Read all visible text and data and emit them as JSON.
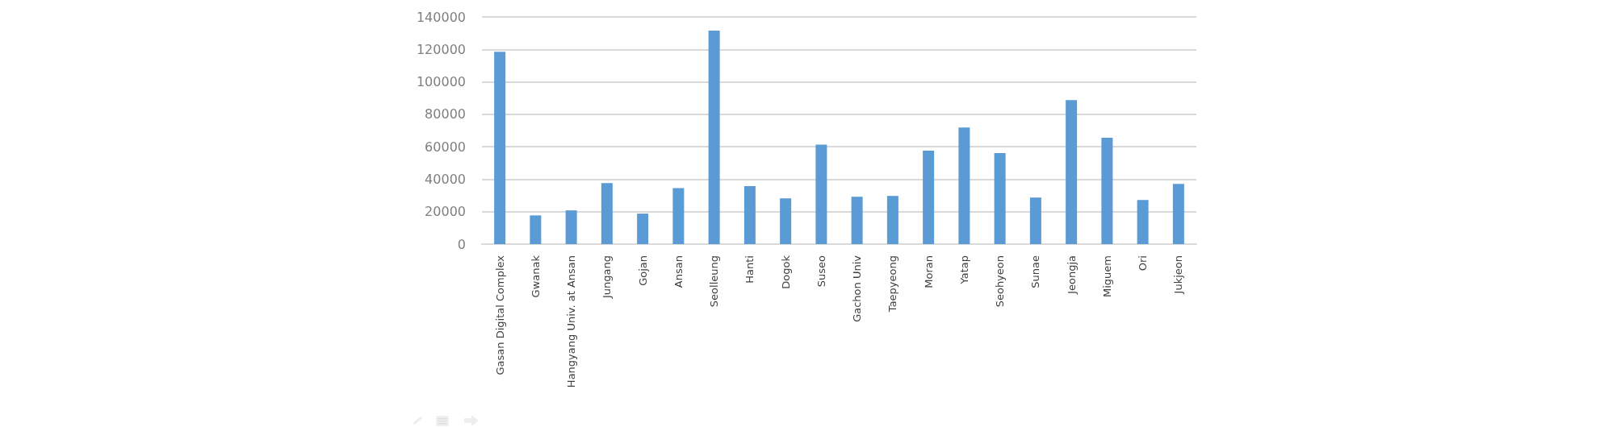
{
  "chart_data": {
    "type": "bar",
    "categories": [
      "Gasan Digital Complex",
      "Gwanak",
      "Hangyang Univ. at Ansan",
      "Jungang",
      "Gojan",
      "Ansan",
      "Seolleung",
      "Hanti",
      "Dogok",
      "Suseo",
      "Gachon Univ",
      "Taepyeong",
      "Moran",
      "Yatap",
      "Seohyeon",
      "Sunae",
      "Jeongja",
      "Miguem",
      "Ori",
      "Jukjeon"
    ],
    "values": [
      118500,
      17700,
      20800,
      37600,
      18800,
      34500,
      131600,
      35700,
      28200,
      61300,
      29200,
      29700,
      57600,
      71800,
      56100,
      28700,
      88700,
      65500,
      27200,
      37100
    ],
    "color": "#5b9bd5",
    "ylim": [
      0,
      140000
    ],
    "yticks": [
      0,
      20000,
      40000,
      60000,
      80000,
      100000,
      120000,
      140000
    ],
    "grid": "y"
  }
}
